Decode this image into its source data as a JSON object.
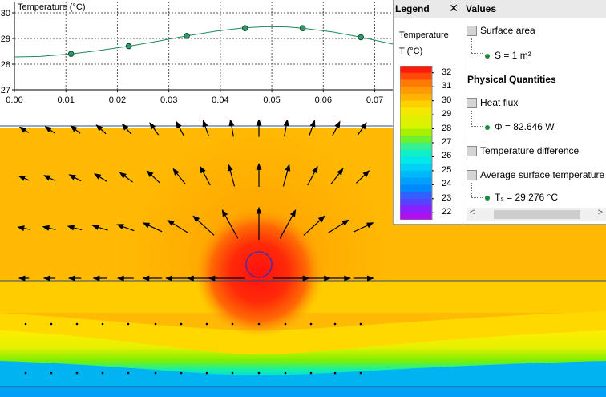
{
  "chart": {
    "ylabel": "Temperature (°C)",
    "yticks": [
      "30",
      "29",
      "28",
      "27"
    ],
    "xticks": [
      "0.00",
      "0.01",
      "0.02",
      "0.03",
      "0.04",
      "0.05",
      "0.06",
      "0.07"
    ]
  },
  "chart_data": {
    "type": "line",
    "ylabel": "Temperature (°C)",
    "xlabel": "",
    "xlim": [
      0,
      0.0735
    ],
    "ylim": [
      27,
      30
    ],
    "grid": true,
    "x": [
      0.011,
      0.0222,
      0.0335,
      0.0448,
      0.056,
      0.0673
    ],
    "values": [
      28.4,
      28.7,
      29.1,
      29.4,
      29.4,
      29.05
    ],
    "curve_x": [
      0.0,
      0.005,
      0.011,
      0.016,
      0.0222,
      0.028,
      0.0335,
      0.039,
      0.0448,
      0.049,
      0.053,
      0.056,
      0.062,
      0.0673,
      0.0735
    ],
    "curve_y": [
      28.28,
      28.3,
      28.4,
      28.52,
      28.7,
      28.9,
      29.1,
      29.28,
      29.42,
      29.46,
      29.45,
      29.4,
      29.25,
      29.05,
      28.78
    ],
    "color": "#1d8a58"
  },
  "legend": {
    "title": "Legend",
    "close": "✕",
    "quantity": "Temperature",
    "unit": "T (°C)",
    "labels": [
      "32",
      "31",
      "30",
      "29",
      "28",
      "27",
      "26",
      "25",
      "24",
      "23",
      "22"
    ]
  },
  "values": {
    "title": "Values",
    "surface_area_label": "Surface area",
    "surface_area_value": "S = 1 m²",
    "physical_quantities": "Physical Quantities",
    "heat_flux_label": "Heat flux",
    "heat_flux_value": "Φ = 82.646 W",
    "temp_diff_label": "Temperature difference",
    "avg_temp_label": "Average surface temperature",
    "avg_temp_value": "Tₛ = 29.276 °C"
  },
  "scrollbar": {
    "left_arrow": "<",
    "right_arrow": ">"
  }
}
